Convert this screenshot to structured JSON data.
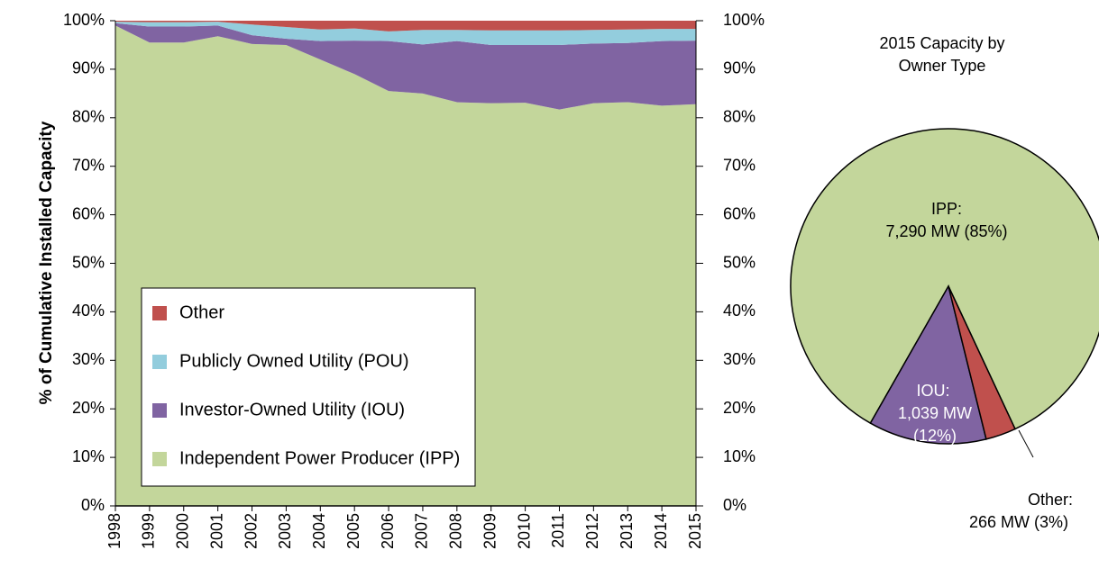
{
  "chart_data": [
    {
      "type": "stacked_area",
      "ylabel": "% of Cumulative Installed Capacity",
      "categories": [
        "1998",
        "1999",
        "2000",
        "2001",
        "2002",
        "2003",
        "2004",
        "2005",
        "2006",
        "2007",
        "2008",
        "2009",
        "2010",
        "2011",
        "2012",
        "2013",
        "2014",
        "2015"
      ],
      "series": [
        {
          "name": "Independent Power Producer (IPP)",
          "color": "#c3d69b",
          "values": [
            99,
            95.5,
            95.5,
            96.8,
            95.2,
            95,
            92,
            89,
            85.5,
            85,
            83.2,
            83,
            83.1,
            81.7,
            83,
            83.2,
            82.5,
            82.8
          ]
        },
        {
          "name": "Investor-Owned Utility (IOU)",
          "color": "#8064a2",
          "values": [
            0.5,
            3.3,
            3.3,
            2.2,
            1.8,
            1.3,
            3.8,
            6.9,
            10.3,
            10.1,
            12.6,
            12,
            11.9,
            13.3,
            12.3,
            12.2,
            13.3,
            13.1
          ]
        },
        {
          "name": "Publicly Owned Utility (POU)",
          "color": "#93cddd",
          "values": [
            0.3,
            0.9,
            0.9,
            0.8,
            2.2,
            2.4,
            2.4,
            2.5,
            2,
            3,
            2.3,
            3,
            3,
            3,
            2.8,
            2.8,
            2.5,
            2.4
          ]
        },
        {
          "name": "Other",
          "color": "#c0504d",
          "values": [
            0.2,
            0.3,
            0.3,
            0.2,
            0.8,
            1.3,
            1.8,
            1.6,
            2.2,
            1.9,
            1.9,
            2,
            2,
            2,
            1.9,
            1.8,
            1.7,
            1.7
          ]
        }
      ],
      "ylim": [
        0,
        100
      ],
      "yticks": [
        {
          "value": 0,
          "label": "0%"
        },
        {
          "value": 10,
          "label": "10%"
        },
        {
          "value": 20,
          "label": "20%"
        },
        {
          "value": 30,
          "label": "30%"
        },
        {
          "value": 40,
          "label": "40%"
        },
        {
          "value": 50,
          "label": "50%"
        },
        {
          "value": 60,
          "label": "60%"
        },
        {
          "value": 70,
          "label": "70%"
        },
        {
          "value": 80,
          "label": "80%"
        },
        {
          "value": 90,
          "label": "90%"
        },
        {
          "value": 100,
          "label": "100%"
        }
      ],
      "y2lim": [
        0,
        100
      ],
      "y2ticks": [
        {
          "value": 0,
          "label": "0%"
        },
        {
          "value": 10,
          "label": "10%"
        },
        {
          "value": 20,
          "label": "20%"
        },
        {
          "value": 30,
          "label": "30%"
        },
        {
          "value": 40,
          "label": "40%"
        },
        {
          "value": 50,
          "label": "50%"
        },
        {
          "value": 60,
          "label": "60%"
        },
        {
          "value": 70,
          "label": "70%"
        },
        {
          "value": 80,
          "label": "80%"
        },
        {
          "value": 90,
          "label": "90%"
        },
        {
          "value": 100,
          "label": "100%"
        }
      ],
      "legend": "lower left"
    },
    {
      "type": "pie",
      "title": "2015 Capacity by Owner Type",
      "categories": [
        "IPP:",
        "IOU:",
        "Other:"
      ],
      "values": [
        7290,
        1039,
        266
      ],
      "value_labels": [
        "7,290 MW (85%)",
        "1,039 MW (12%)",
        "266 MW (3%)"
      ],
      "colors": [
        "#c3d69b",
        "#8064a2",
        "#c0504d"
      ]
    }
  ]
}
